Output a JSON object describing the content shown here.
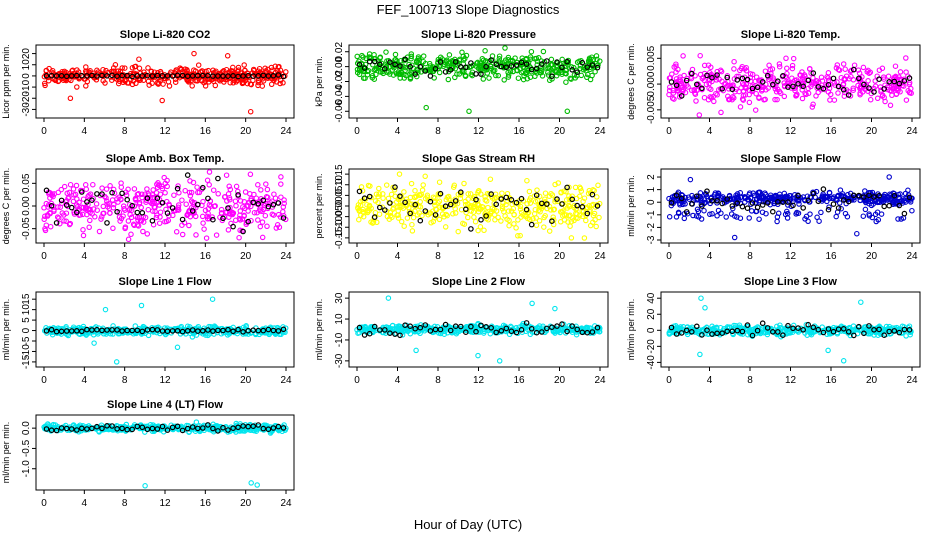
{
  "title": "FEF_100713  Slope Diagnostics",
  "xlabel": "Hour of Day (UTC)",
  "chart_data": [
    {
      "type": "scatter",
      "title": "Slope Li-820 CO2",
      "ylabel": "Licor ppm per min.",
      "color": "#ff0000",
      "xlim": [
        0,
        24
      ],
      "xticks": [
        0,
        4,
        8,
        12,
        16,
        20,
        24
      ],
      "ylim": [
        -35,
        25
      ],
      "yticks": [
        -30,
        -20,
        -10,
        0,
        10,
        20
      ],
      "spread": [
        0.2,
        4
      ],
      "outlier_values": [
        -32,
        20,
        -20,
        18,
        -22,
        15
      ],
      "black_spread": 0.3
    },
    {
      "type": "scatter",
      "title": "Slope Li-820 Pressure",
      "ylabel": "kPa per min.",
      "color": "#00bb00",
      "xlim": [
        0,
        24
      ],
      "xticks": [
        0,
        4,
        8,
        12,
        16,
        20,
        24
      ],
      "ylim": [
        -0.065,
        0.025
      ],
      "yticks": [
        -0.06,
        -0.04,
        -0.02,
        0.0,
        0.02
      ],
      "spread": [
        -0.005,
        0.008
      ],
      "outlier_values": [
        -0.06,
        -0.06,
        0.02,
        -0.055
      ],
      "black_spread": 0.005
    },
    {
      "type": "scatter",
      "title": "Slope Li-820 Temp.",
      "ylabel": "degrees C per min.",
      "color": "#ff00ff",
      "xlim": [
        0,
        24
      ],
      "xticks": [
        0,
        4,
        8,
        12,
        16,
        20,
        24
      ],
      "ylim": [
        -0.006,
        0.007
      ],
      "yticks": [
        -0.005,
        0.0,
        0.005
      ],
      "spread": [
        -0.0005,
        0.0018
      ],
      "outlier_values": [
        -0.0055,
        0.0055,
        -0.006,
        0.005
      ],
      "black_spread": 0.0012
    },
    {
      "type": "scatter",
      "title": "Slope Amb. Box Temp.",
      "ylabel": "degrees C per min.",
      "color": "#ff00ff",
      "xlim": [
        0,
        24
      ],
      "xticks": [
        0,
        4,
        8,
        12,
        16,
        20,
        24
      ],
      "ylim": [
        -0.075,
        0.075
      ],
      "yticks": [
        -0.05,
        0.0,
        0.05
      ],
      "spread": [
        0,
        0.028
      ],
      "outlier_values": [
        -0.07,
        0.07,
        -0.065,
        0.068
      ],
      "black_spread": 0.025
    },
    {
      "type": "scatter",
      "title": "Slope Gas Stream RH",
      "ylabel": "percent per min.",
      "color": "#ffff00",
      "xlim": [
        0,
        24
      ],
      "xticks": [
        0,
        4,
        8,
        12,
        16,
        20,
        24
      ],
      "ylim": [
        -0.16,
        0.16
      ],
      "yticks": [
        -0.15,
        -0.1,
        -0.05,
        0.0,
        0.05,
        0.1,
        0.15
      ],
      "spread": [
        0,
        0.05
      ],
      "outlier_values": [
        -0.15,
        0.15,
        -0.14,
        0.14
      ],
      "black_spread": 0.05
    },
    {
      "type": "scatter",
      "title": "Slope Sample Flow",
      "ylabel": "ml/min per min.",
      "color": "#0000cc",
      "xlim": [
        0,
        24
      ],
      "xticks": [
        0,
        4,
        8,
        12,
        16,
        20,
        24
      ],
      "ylim": [
        -3,
        2.4
      ],
      "yticks": [
        -3,
        -2,
        -1,
        0,
        1,
        2
      ],
      "bands": [
        [
          0.3,
          0.25
        ],
        [
          -1,
          0.25
        ]
      ],
      "outlier_values": [
        -2.8,
        2.0,
        -2.5,
        1.8
      ],
      "black_spread": 0.5
    },
    {
      "type": "scatter",
      "title": "Slope Line 1 Flow",
      "ylabel": "ml/min per min.",
      "color": "#00e5ee",
      "xlim": [
        0,
        24
      ],
      "xticks": [
        0,
        4,
        8,
        12,
        16,
        20,
        24
      ],
      "ylim": [
        -16,
        17
      ],
      "yticks": [
        -15,
        -10,
        -5,
        0,
        5,
        10,
        15
      ],
      "spread": [
        0,
        1
      ],
      "outlier_values": [
        -15,
        15,
        -8,
        12,
        10,
        -6
      ],
      "black_spread": 0.3
    },
    {
      "type": "scatter",
      "title": "Slope Line 2 Flow",
      "ylabel": "ml/min per min.",
      "color": "#00e5ee",
      "xlim": [
        0,
        24
      ],
      "xticks": [
        0,
        4,
        8,
        12,
        16,
        20,
        24
      ],
      "ylim": [
        -33,
        33
      ],
      "yticks": [
        -30,
        -10,
        10,
        30
      ],
      "spread": [
        0,
        2
      ],
      "outlier_values": [
        -30,
        30,
        -25,
        25,
        -20,
        20
      ],
      "black_spread": 3
    },
    {
      "type": "scatter",
      "title": "Slope Line 3 Flow",
      "ylabel": "ml/min per min.",
      "color": "#00e5ee",
      "xlim": [
        0,
        24
      ],
      "xticks": [
        0,
        4,
        8,
        12,
        16,
        20,
        24
      ],
      "ylim": [
        -42,
        44
      ],
      "yticks": [
        -40,
        -20,
        0,
        20,
        40
      ],
      "spread": [
        0,
        3
      ],
      "outlier_values": [
        -38,
        40,
        -30,
        35,
        -25,
        28
      ],
      "black_spread": 4
    },
    {
      "type": "scatter",
      "title": "Slope Line 4 (LT) Flow",
      "ylabel": "ml/min per min.",
      "color": "#00e5ee",
      "xlim": [
        0,
        24
      ],
      "xticks": [
        0,
        4,
        8,
        12,
        16,
        20,
        24
      ],
      "ylim": [
        -1.45,
        0.25
      ],
      "yticks": [
        -1.0,
        -0.5,
        0.0
      ],
      "spread": [
        0,
        0.04
      ],
      "outlier_values": [
        -1.35,
        -1.4,
        -1.42,
        0.15
      ],
      "black_spread": 0.03
    }
  ]
}
